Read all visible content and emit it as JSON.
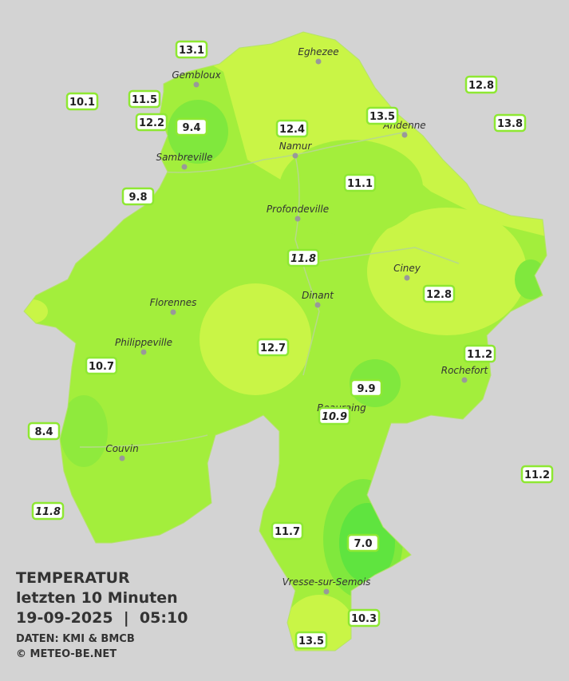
{
  "title": {
    "heading": "TEMPERATUR",
    "period": "letzten 10 Minuten",
    "timestamp": "19-09-2025  |  05:10",
    "source": "DATEN: KMI & BMCB",
    "copyright": "© METEO-BE.NET"
  },
  "cities": [
    {
      "name": "Eghezee"
    },
    {
      "name": "Gembloux"
    },
    {
      "name": "Andenne"
    },
    {
      "name": "Namur"
    },
    {
      "name": "Sambreville"
    },
    {
      "name": "Profondeville"
    },
    {
      "name": "Ciney"
    },
    {
      "name": "Dinant"
    },
    {
      "name": "Florennes"
    },
    {
      "name": "Philippeville"
    },
    {
      "name": "Rochefort"
    },
    {
      "name": "Beauraing"
    },
    {
      "name": "Couvin"
    },
    {
      "name": "Vresse-sur-Semois"
    }
  ],
  "stations": [
    {
      "value": "13.1"
    },
    {
      "value": "10.1"
    },
    {
      "value": "11.5"
    },
    {
      "value": "12.2"
    },
    {
      "value": "9.4"
    },
    {
      "value": "12.4"
    },
    {
      "value": "13.5"
    },
    {
      "value": "12.8"
    },
    {
      "value": "13.8"
    },
    {
      "value": "9.8"
    },
    {
      "value": "11.1"
    },
    {
      "value": "11.8",
      "italic": true
    },
    {
      "value": "12.8"
    },
    {
      "value": "12.7"
    },
    {
      "value": "11.2"
    },
    {
      "value": "10.7"
    },
    {
      "value": "9.9"
    },
    {
      "value": "10.9",
      "italic": true
    },
    {
      "value": "8.4"
    },
    {
      "value": "11.2"
    },
    {
      "value": "11.8",
      "italic": true
    },
    {
      "value": "11.7"
    },
    {
      "value": "7.0"
    },
    {
      "value": "10.3"
    },
    {
      "value": "13.5"
    }
  ]
}
